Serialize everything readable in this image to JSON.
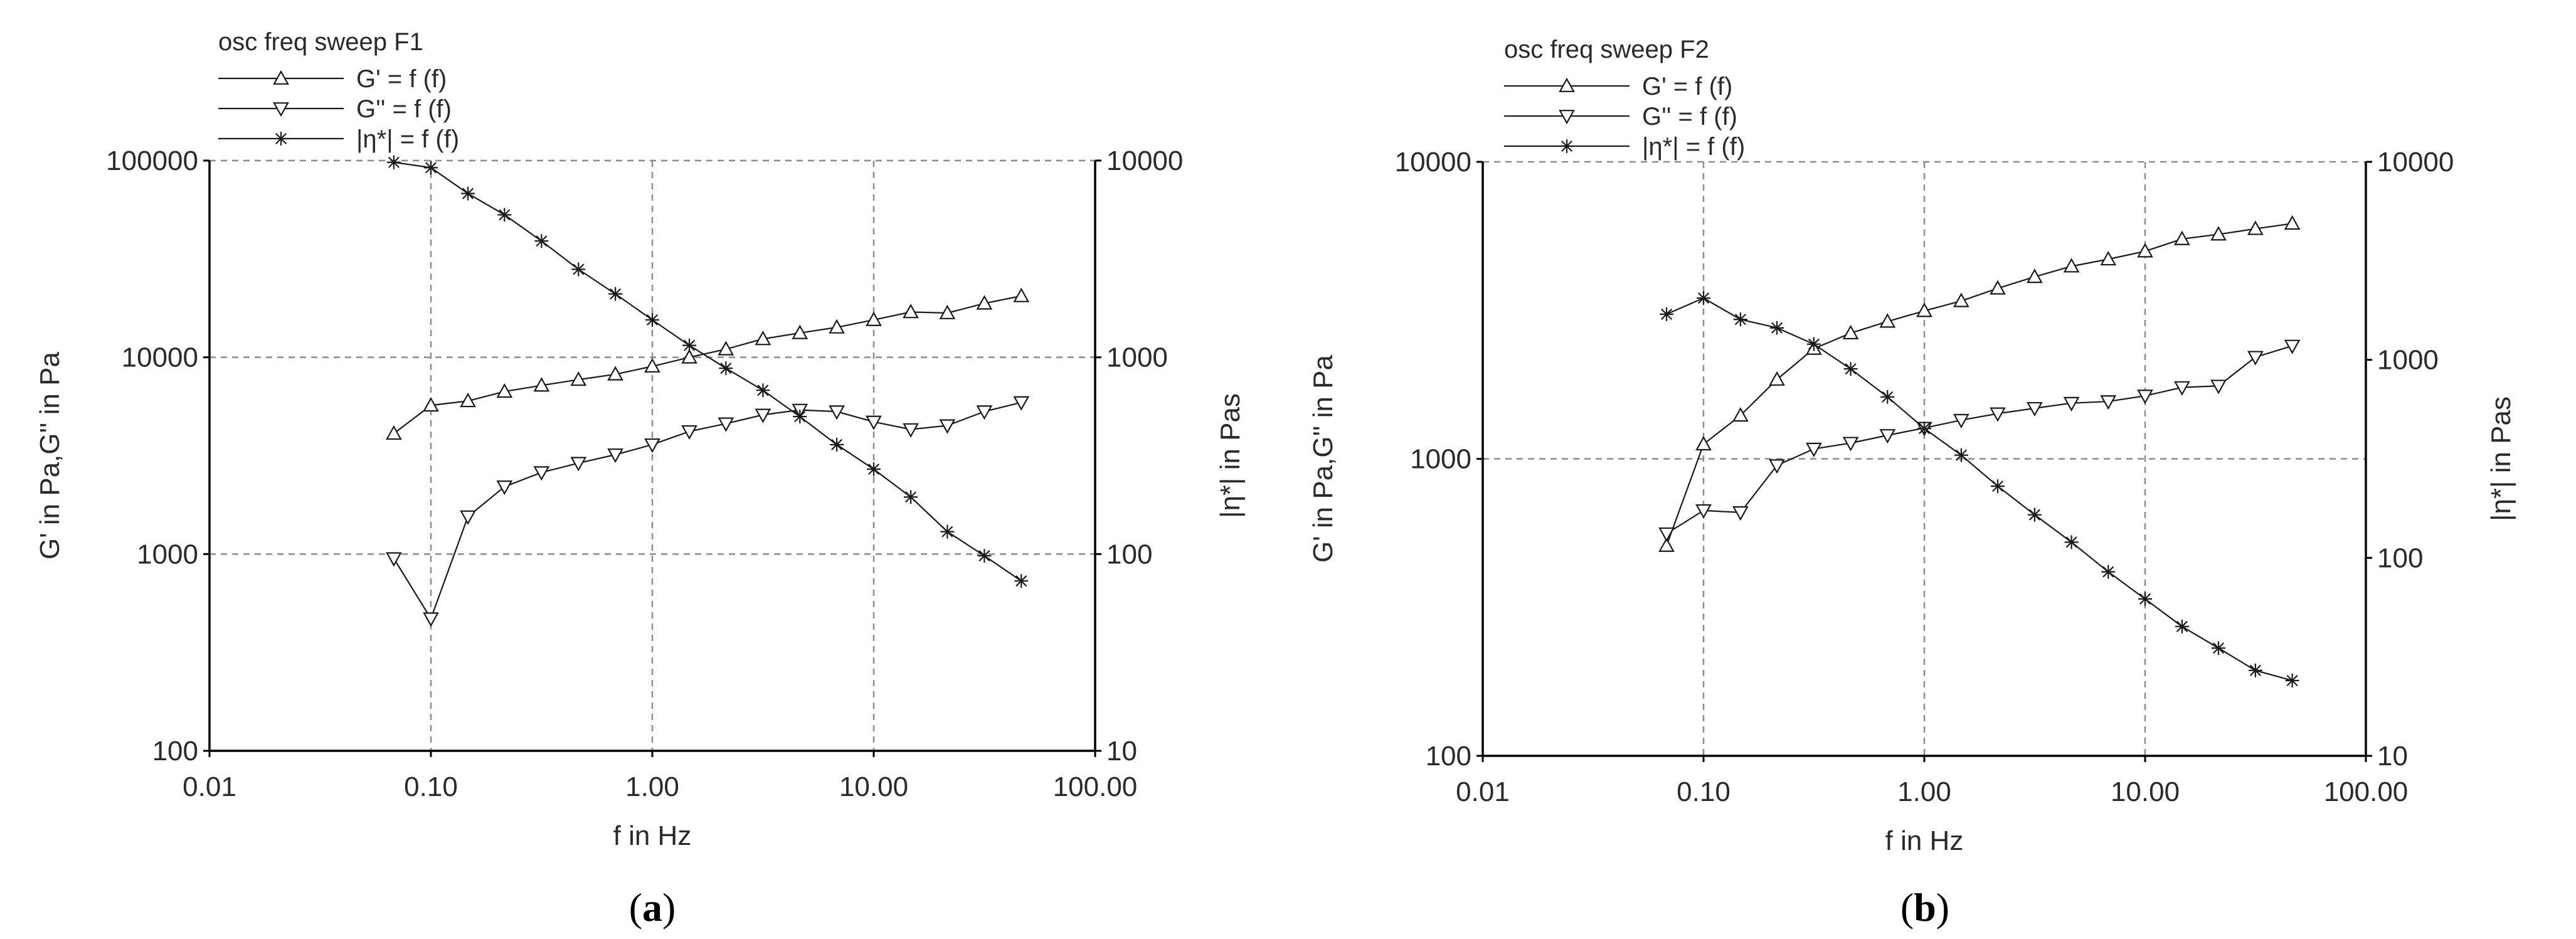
{
  "chart_data": [
    {
      "type": "line",
      "panel_label": "a",
      "legend_title": "osc freq sweep F1",
      "xlabel": "f in Hz",
      "ylabel": "G' in Pa,G'' in Pa",
      "y2label": "|η*| in Pas",
      "xscale": "log",
      "yscale": "log",
      "y2scale": "log",
      "xlim": [
        0.01,
        100
      ],
      "ylim": [
        100,
        100000
      ],
      "y2lim": [
        10,
        10000
      ],
      "xticks": [
        "0.01",
        "0.10",
        "1.00",
        "10.00",
        "100.00"
      ],
      "yticks": [
        "100",
        "1000",
        "10000",
        "100000"
      ],
      "y2ticks": [
        "10",
        "100",
        "1000",
        "10000"
      ],
      "grid": true,
      "legend_position": "top-left",
      "series": [
        {
          "name": "G' = f (f)",
          "axis": "left",
          "marker": "triangle-up",
          "x": [
            0.068,
            0.1,
            0.147,
            0.215,
            0.316,
            0.464,
            0.681,
            1.0,
            1.47,
            2.15,
            3.16,
            4.64,
            6.81,
            10.0,
            14.7,
            21.5,
            31.6,
            46.4
          ],
          "y": [
            4100,
            5700,
            6000,
            6700,
            7200,
            7700,
            8200,
            9000,
            10000,
            11000,
            12400,
            13300,
            14200,
            15500,
            17000,
            16800,
            18800,
            20500
          ]
        },
        {
          "name": "G'' = f (f)",
          "axis": "left",
          "marker": "triangle-down",
          "x": [
            0.068,
            0.1,
            0.147,
            0.215,
            0.316,
            0.464,
            0.681,
            1.0,
            1.47,
            2.15,
            3.16,
            4.64,
            6.81,
            10.0,
            14.7,
            21.5,
            31.6,
            46.4
          ],
          "y": [
            950,
            470,
            1550,
            2200,
            2600,
            2900,
            3200,
            3600,
            4200,
            4600,
            5100,
            5400,
            5300,
            4700,
            4300,
            4500,
            5300,
            5900
          ]
        },
        {
          "name": "|η*| = f (f)",
          "axis": "right",
          "marker": "star",
          "x": [
            0.068,
            0.1,
            0.147,
            0.215,
            0.316,
            0.464,
            0.681,
            1.0,
            1.47,
            2.15,
            3.16,
            4.64,
            6.81,
            10.0,
            14.7,
            21.5,
            31.6,
            46.4
          ],
          "y": [
            9800,
            9200,
            6800,
            5300,
            3900,
            2800,
            2100,
            1550,
            1150,
            880,
            680,
            500,
            360,
            270,
            195,
            130,
            98,
            73
          ]
        }
      ]
    },
    {
      "type": "line",
      "panel_label": "b",
      "legend_title": "osc freq sweep F2",
      "xlabel": "f in Hz",
      "ylabel": "G' in Pa,G'' in Pa",
      "y2label": "|η*| in Pas",
      "xscale": "log",
      "yscale": "log",
      "y2scale": "log",
      "xlim": [
        0.01,
        100
      ],
      "ylim": [
        100,
        10000
      ],
      "y2lim": [
        10,
        10000
      ],
      "xticks": [
        "0.01",
        "0.10",
        "1.00",
        "10.00",
        "100.00"
      ],
      "yticks": [
        "100",
        "1000",
        "10000"
      ],
      "y2ticks": [
        "10",
        "100",
        "1000",
        "10000"
      ],
      "grid": true,
      "legend_position": "top-left",
      "series": [
        {
          "name": "G' = f (f)",
          "axis": "left",
          "marker": "triangle-up",
          "x": [
            0.068,
            0.1,
            0.147,
            0.215,
            0.316,
            0.464,
            0.681,
            1.0,
            1.47,
            2.15,
            3.16,
            4.64,
            6.81,
            10.0,
            14.7,
            21.5,
            31.6,
            46.4
          ],
          "y": [
            510,
            1120,
            1400,
            1850,
            2350,
            2650,
            2900,
            3150,
            3400,
            3750,
            4100,
            4450,
            4700,
            5000,
            5500,
            5700,
            5950,
            6200
          ]
        },
        {
          "name": "G'' = f (f)",
          "axis": "left",
          "marker": "triangle-down",
          "x": [
            0.068,
            0.1,
            0.147,
            0.215,
            0.316,
            0.464,
            0.681,
            1.0,
            1.47,
            2.15,
            3.16,
            4.64,
            6.81,
            10.0,
            14.7,
            21.5,
            31.6,
            46.4
          ],
          "y": [
            560,
            670,
            660,
            950,
            1080,
            1130,
            1200,
            1270,
            1350,
            1420,
            1480,
            1540,
            1560,
            1630,
            1740,
            1760,
            2200,
            2400
          ]
        },
        {
          "name": "|η*| = f (f)",
          "axis": "right",
          "marker": "star",
          "x": [
            0.068,
            0.1,
            0.147,
            0.215,
            0.316,
            0.464,
            0.681,
            1.0,
            1.47,
            2.15,
            3.16,
            4.64,
            6.81,
            10.0,
            14.7,
            21.5,
            31.6,
            46.4
          ],
          "y": [
            1700,
            2050,
            1600,
            1450,
            1200,
            900,
            650,
            450,
            330,
            230,
            165,
            120,
            85,
            62,
            45,
            35,
            27,
            24
          ]
        }
      ]
    }
  ]
}
